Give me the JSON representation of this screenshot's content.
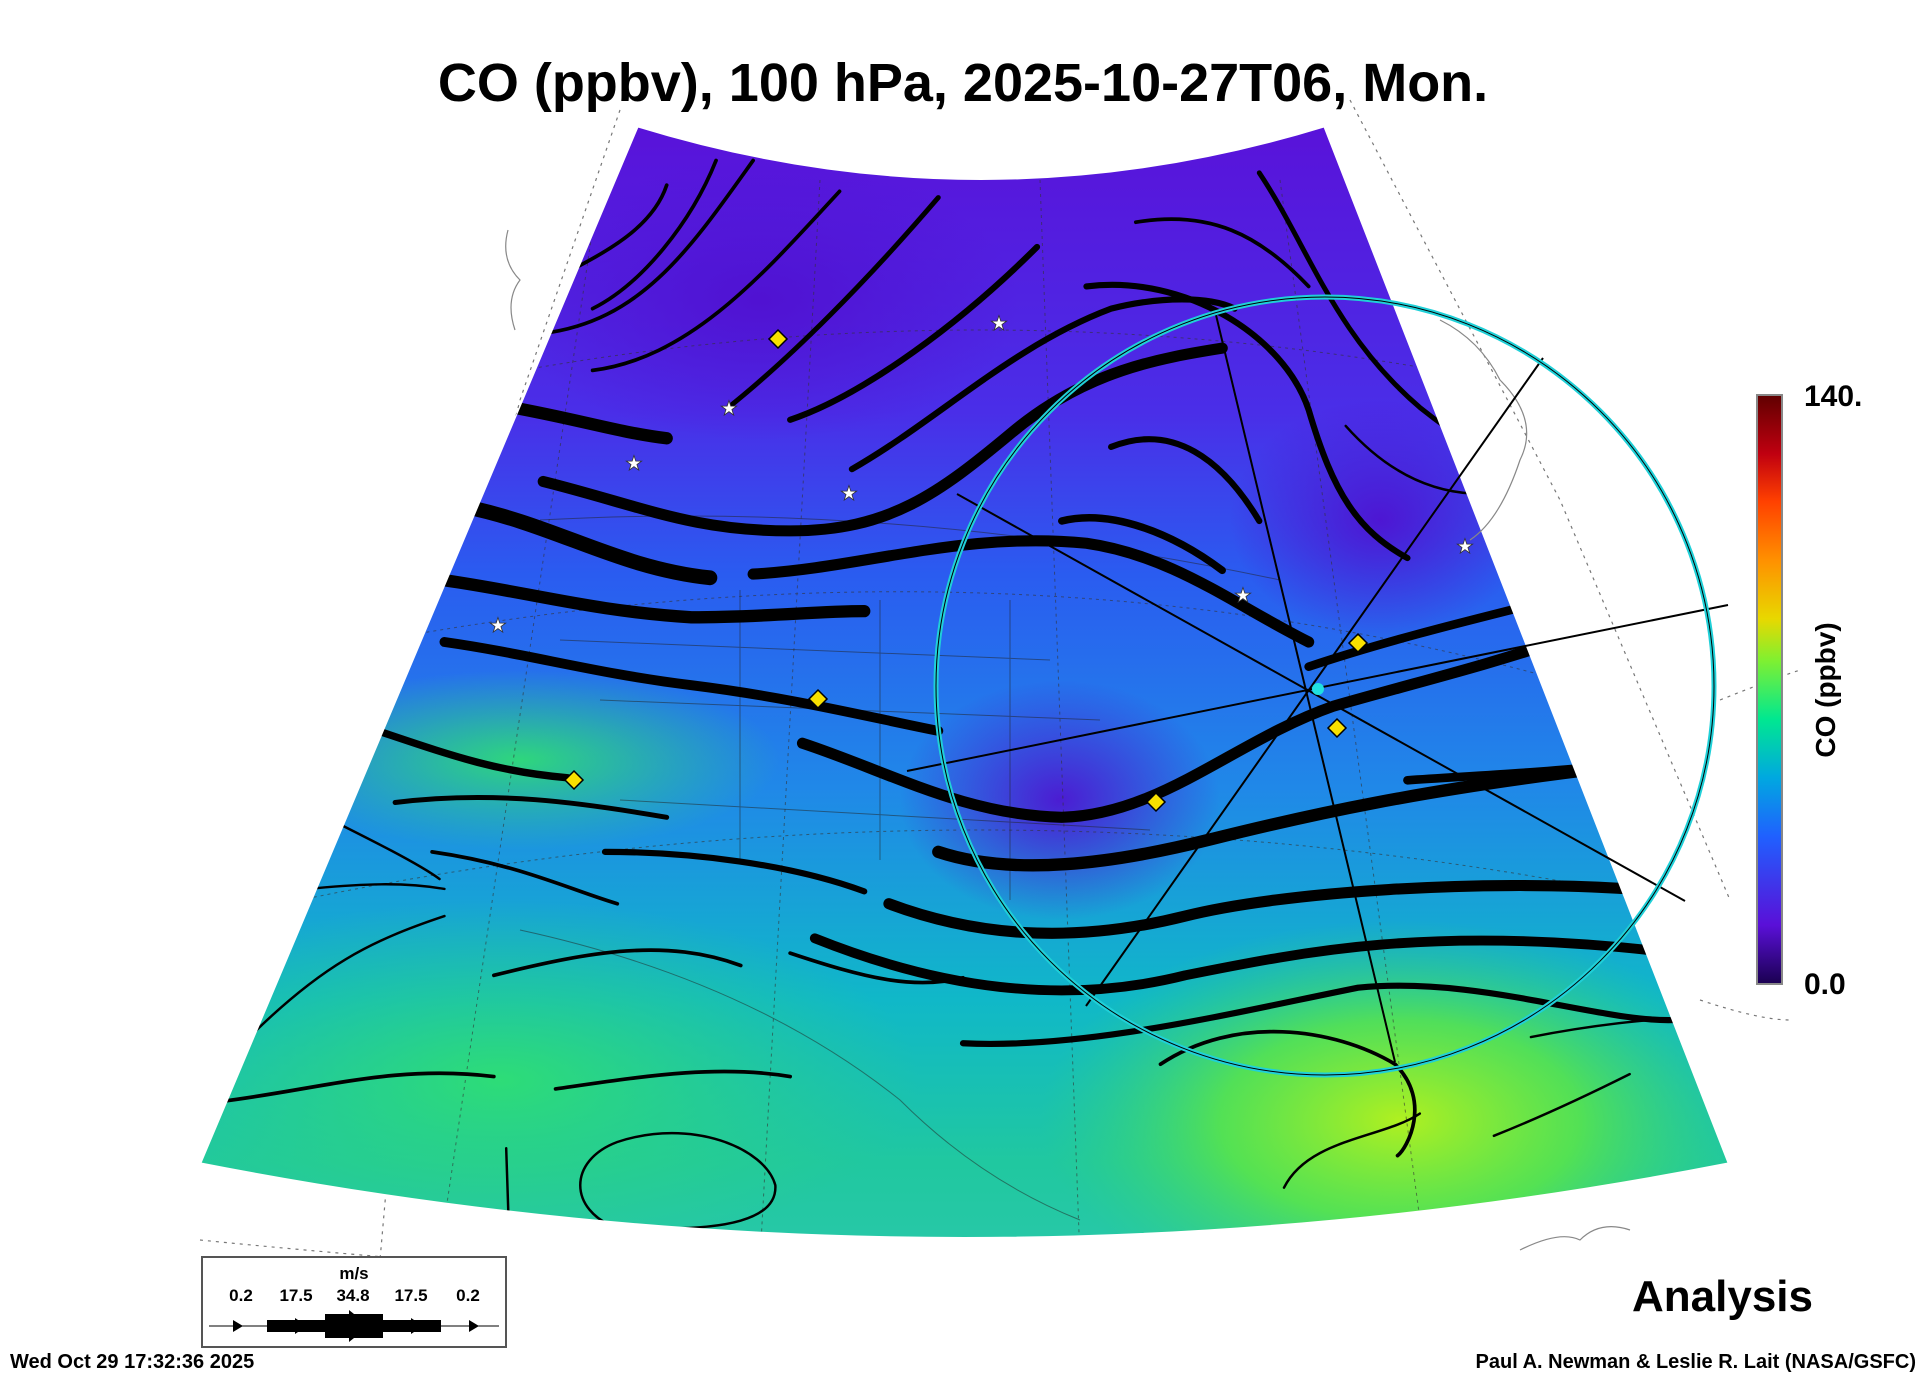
{
  "title": "CO (ppbv), 100 hPa, 2025-10-27T06, Mon.",
  "colorbar": {
    "label": "CO (ppbv)",
    "max_label": "140.",
    "min_label": "0.0",
    "colors": [
      "#1a0050",
      "#5a10d8",
      "#2060ff",
      "#00a8e0",
      "#00e890",
      "#80f030",
      "#e8d800",
      "#ff9000",
      "#ff4000",
      "#c00010",
      "#600000"
    ]
  },
  "legend": {
    "unit": "m/s",
    "values": [
      "0.2",
      "17.5",
      "34.8",
      "17.5",
      "0.2"
    ]
  },
  "analysis_label": "Analysis",
  "footer": {
    "timestamp": "Wed Oct 29 17:32:36 2025",
    "credit": "Paul A. Newman & Leslie R. Lait (NASA/GSFC)"
  }
}
